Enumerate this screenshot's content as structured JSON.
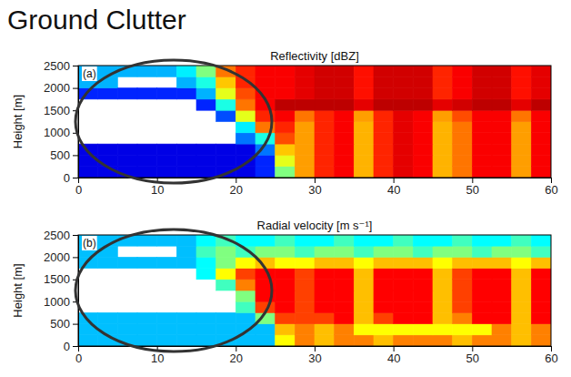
{
  "heading": "Ground Clutter",
  "chart_data": [
    {
      "type": "heatmap",
      "title": "Reflectivity [dBZ]",
      "panel": "(a)",
      "ylabel": "Height [m]",
      "xlim": [
        0,
        60
      ],
      "xticks": [
        0,
        10,
        20,
        30,
        40,
        50,
        60
      ],
      "ylim": [
        0,
        2500
      ],
      "yticks": [
        0,
        500,
        1000,
        1500,
        2000,
        2500
      ],
      "x_edges": [
        0,
        2.5,
        5,
        7.5,
        10,
        12.5,
        15,
        17.5,
        20,
        22.5,
        25,
        27.5,
        30,
        32.5,
        35,
        37.5,
        40,
        42.5,
        45,
        47.5,
        50,
        52.5,
        55,
        57.5,
        60
      ],
      "y_edges": [
        0,
        250,
        500,
        750,
        1000,
        1250,
        1500,
        1750,
        2000,
        2250,
        2500
      ],
      "clim": [
        -30,
        20
      ],
      "cells": [
        [
          -25,
          -25,
          -25,
          -25,
          -25,
          -25,
          -25,
          -25,
          -25,
          -22,
          -5,
          6,
          12,
          14,
          5,
          12,
          15,
          14,
          5,
          8,
          14,
          14,
          6,
          14
        ],
        [
          -25,
          -25,
          -25,
          -25,
          -25,
          -25,
          -25,
          -25,
          -25,
          -22,
          0,
          6,
          12,
          14,
          5,
          12,
          15,
          14,
          5,
          8,
          14,
          14,
          6,
          14
        ],
        [
          -25,
          -25,
          -25,
          -25,
          -25,
          -25,
          -25,
          -25,
          -25,
          -18,
          4,
          6,
          12,
          14,
          5,
          12,
          15,
          14,
          5,
          8,
          14,
          14,
          6,
          14
        ],
        [
          null,
          null,
          null,
          null,
          null,
          null,
          null,
          null,
          -18,
          -10,
          10,
          6,
          12,
          14,
          5,
          12,
          15,
          14,
          5,
          8,
          14,
          14,
          6,
          14
        ],
        [
          null,
          null,
          null,
          null,
          null,
          null,
          null,
          null,
          -12,
          8,
          12,
          6,
          12,
          14,
          5,
          12,
          15,
          14,
          5,
          8,
          14,
          14,
          6,
          14
        ],
        [
          null,
          null,
          null,
          null,
          null,
          null,
          null,
          -20,
          0,
          12,
          14,
          8,
          12,
          14,
          6,
          12,
          15,
          14,
          6,
          10,
          14,
          14,
          8,
          14
        ],
        [
          null,
          null,
          null,
          null,
          null,
          null,
          -22,
          -10,
          8,
          14,
          17,
          17,
          17,
          17,
          15,
          17,
          17,
          17,
          15,
          16,
          17,
          17,
          15,
          17
        ],
        [
          -22,
          -22,
          -22,
          -22,
          -22,
          -22,
          -15,
          0,
          10,
          14,
          14,
          15,
          16,
          16,
          13,
          16,
          16,
          16,
          12,
          14,
          16,
          16,
          13,
          15
        ],
        [
          -15,
          -15,
          null,
          null,
          null,
          -15,
          -10,
          4,
          12,
          14,
          14,
          15,
          16,
          16,
          13,
          16,
          16,
          16,
          12,
          14,
          16,
          16,
          13,
          15
        ],
        [
          -15,
          -15,
          -15,
          -15,
          -15,
          -12,
          -5,
          8,
          12,
          14,
          14,
          15,
          16,
          16,
          13,
          16,
          16,
          16,
          12,
          14,
          16,
          16,
          13,
          15
        ]
      ]
    },
    {
      "type": "heatmap",
      "title": "Radial velocity [m s⁻¹]",
      "panel": "(b)",
      "ylabel": "Height [m]",
      "xlim": [
        0,
        60
      ],
      "xticks": [
        0,
        10,
        20,
        30,
        40,
        50,
        60
      ],
      "ylim": [
        0,
        2500
      ],
      "yticks": [
        0,
        500,
        1000,
        1500,
        2000,
        2500
      ],
      "x_edges": [
        0,
        2.5,
        5,
        7.5,
        10,
        12.5,
        15,
        17.5,
        20,
        22.5,
        25,
        27.5,
        30,
        32.5,
        35,
        37.5,
        40,
        42.5,
        45,
        47.5,
        50,
        52.5,
        55,
        57.5,
        60
      ],
      "y_edges": [
        0,
        250,
        500,
        750,
        1000,
        1250,
        1500,
        1750,
        2000,
        2250,
        2500
      ],
      "clim": [
        -8,
        8
      ],
      "cells": [
        [
          -3,
          -3,
          -3,
          -3,
          -3,
          -3,
          -3,
          -3,
          -3,
          -3,
          2,
          4,
          3,
          4,
          4,
          3,
          4,
          4,
          4,
          3,
          4,
          4,
          3,
          4
        ],
        [
          -3,
          -3,
          -3,
          -3,
          -3,
          -3,
          -3,
          -3,
          -3,
          -3,
          3,
          4,
          3,
          4,
          2,
          2,
          2,
          2,
          2,
          2,
          2,
          4,
          3,
          4
        ],
        [
          -3,
          -3,
          -3,
          -3,
          -3,
          -3,
          -3,
          -3,
          -3,
          0,
          5,
          5,
          5,
          6,
          3,
          5,
          6,
          6,
          3,
          4,
          6,
          6,
          3,
          6
        ],
        [
          null,
          null,
          null,
          null,
          null,
          null,
          null,
          null,
          -1,
          5,
          6,
          5,
          6,
          6,
          3,
          6,
          6,
          6,
          3,
          5,
          6,
          6,
          3,
          6
        ],
        [
          null,
          null,
          null,
          null,
          null,
          null,
          null,
          null,
          0,
          6,
          6,
          5,
          6,
          6,
          3,
          6,
          6,
          6,
          3,
          5,
          6,
          6,
          3,
          6
        ],
        [
          null,
          null,
          null,
          null,
          null,
          null,
          null,
          -1,
          4,
          6,
          6,
          5,
          6,
          6,
          3,
          6,
          6,
          6,
          3,
          5,
          6,
          6,
          3,
          6
        ],
        [
          null,
          null,
          null,
          null,
          null,
          null,
          -2,
          2,
          5,
          6,
          6,
          5,
          6,
          6,
          3,
          6,
          6,
          6,
          3,
          5,
          6,
          6,
          3,
          6
        ],
        [
          -3,
          -3,
          -3,
          -3,
          -3,
          -3,
          -2,
          0,
          2,
          3,
          2,
          2,
          3,
          3,
          2,
          3,
          3,
          3,
          2,
          3,
          3,
          3,
          2,
          3
        ],
        [
          -3,
          -3,
          null,
          null,
          null,
          -3,
          -1,
          0,
          -1,
          0,
          0,
          -1,
          0,
          0,
          -1,
          0,
          0,
          -1,
          0,
          0,
          -1,
          0,
          0,
          -1
        ],
        [
          -3,
          -3,
          -3,
          -3,
          -3,
          -3,
          -2,
          -1,
          -2,
          -2,
          -1,
          -2,
          -2,
          -1,
          -2,
          -2,
          -1,
          -2,
          -2,
          -1,
          -2,
          -2,
          -1,
          -2
        ]
      ]
    }
  ]
}
